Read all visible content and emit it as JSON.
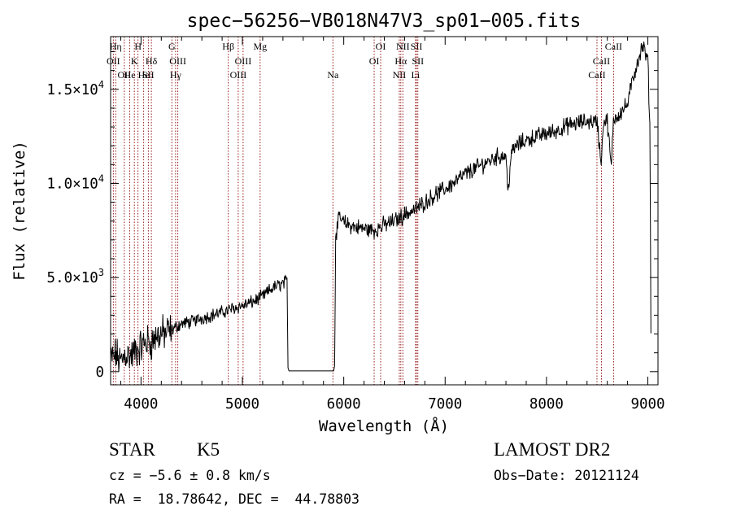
{
  "chart_data": {
    "type": "line",
    "title": "spec−56256−VB018N47V3_sp01−005.fits",
    "xlabel": "Wavelength (Å)",
    "ylabel": "Flux (relative)",
    "xlim": [
      3700,
      9100
    ],
    "ylim": [
      -700,
      17800
    ],
    "x_ticks": [
      4000,
      5000,
      6000,
      7000,
      8000,
      9000
    ],
    "x_tick_labels": [
      "4000",
      "5000",
      "6000",
      "7000",
      "8000",
      "9000"
    ],
    "y_ticks": [
      0,
      5000,
      10000,
      15000
    ],
    "y_tick_labels": [
      {
        "mant": "0",
        "exp": ""
      },
      {
        "mant": "5.0×10",
        "exp": "3"
      },
      {
        "mant": "1.0×10",
        "exp": "4"
      },
      {
        "mant": "1.5×10",
        "exp": "4"
      }
    ],
    "grid": false,
    "series": [
      {
        "color": "#000000",
        "anchors": [
          [
            3700,
            600
          ],
          [
            3750,
            900
          ],
          [
            3800,
            500
          ],
          [
            3850,
            1000
          ],
          [
            3900,
            800
          ],
          [
            3950,
            1100
          ],
          [
            4000,
            1300
          ],
          [
            4050,
            1600
          ],
          [
            4100,
            1550
          ],
          [
            4150,
            1850
          ],
          [
            4200,
            2000
          ],
          [
            4250,
            2050
          ],
          [
            4300,
            2200
          ],
          [
            4350,
            2400
          ],
          [
            4400,
            2550
          ],
          [
            4500,
            2650
          ],
          [
            4600,
            2850
          ],
          [
            4700,
            3000
          ],
          [
            4800,
            3150
          ],
          [
            4900,
            3350
          ],
          [
            5000,
            3500
          ],
          [
            5100,
            3700
          ],
          [
            5200,
            4000
          ],
          [
            5300,
            4450
          ],
          [
            5400,
            4700
          ],
          [
            5440,
            4800
          ],
          [
            5450,
            200
          ],
          [
            5460,
            40
          ],
          [
            5900,
            40
          ],
          [
            5910,
            300
          ],
          [
            5920,
            7300
          ],
          [
            5960,
            8200
          ],
          [
            6000,
            7900
          ],
          [
            6100,
            7700
          ],
          [
            6200,
            7600
          ],
          [
            6300,
            7500
          ],
          [
            6400,
            7800
          ],
          [
            6500,
            8000
          ],
          [
            6600,
            8350
          ],
          [
            6700,
            8600
          ],
          [
            6800,
            9000
          ],
          [
            6900,
            9400
          ],
          [
            7000,
            9700
          ],
          [
            7100,
            10100
          ],
          [
            7200,
            10500
          ],
          [
            7300,
            10800
          ],
          [
            7400,
            11100
          ],
          [
            7500,
            11400
          ],
          [
            7600,
            11500
          ],
          [
            7620,
            9500
          ],
          [
            7650,
            11500
          ],
          [
            7700,
            12000
          ],
          [
            7800,
            12300
          ],
          [
            7900,
            12500
          ],
          [
            8000,
            12650
          ],
          [
            8100,
            12800
          ],
          [
            8200,
            13050
          ],
          [
            8300,
            13200
          ],
          [
            8400,
            13300
          ],
          [
            8500,
            13300
          ],
          [
            8540,
            11000
          ],
          [
            8560,
            13300
          ],
          [
            8600,
            13300
          ],
          [
            8640,
            10800
          ],
          [
            8660,
            13400
          ],
          [
            8700,
            13600
          ],
          [
            8800,
            14200
          ],
          [
            8850,
            15500
          ],
          [
            8900,
            16500
          ],
          [
            8950,
            17300
          ],
          [
            9000,
            16500
          ],
          [
            9020,
            13000
          ],
          [
            9030,
            2400
          ]
        ],
        "sampling_step_A": 5
      }
    ],
    "lines_label_color": "#000000",
    "line_color": "#8b0000",
    "spectral_lines": [
      {
        "w": 3727,
        "label": "OII",
        "row": 2
      },
      {
        "w": 3750,
        "label": "Hη",
        "row": 1
      },
      {
        "w": 3835,
        "label": "OII",
        "row": 3
      },
      {
        "w": 3889,
        "label": "He",
        "row": 3
      },
      {
        "w": 3934,
        "label": "K",
        "row": 2
      },
      {
        "w": 3970,
        "label": "H",
        "row": 1
      },
      {
        "w": 4026,
        "label": "He",
        "row": 3
      },
      {
        "w": 4072,
        "label": "SII",
        "row": 3
      },
      {
        "w": 4102,
        "label": "Hδ",
        "row": 2
      },
      {
        "w": 4304,
        "label": "G",
        "row": 1
      },
      {
        "w": 4341,
        "label": "Hγ",
        "row": 3
      },
      {
        "w": 4363,
        "label": "OIII",
        "row": 2
      },
      {
        "w": 4861,
        "label": "Hβ",
        "row": 1
      },
      {
        "w": 4959,
        "label": "OIII",
        "row": 3
      },
      {
        "w": 5007,
        "label": "OIII",
        "row": 2
      },
      {
        "w": 5175,
        "label": "Mg",
        "row": 1
      },
      {
        "w": 5893,
        "label": "Na",
        "row": 3
      },
      {
        "w": 6300,
        "label": "OI",
        "row": 2
      },
      {
        "w": 6364,
        "label": "OI",
        "row": 1
      },
      {
        "w": 6548,
        "label": "NII",
        "row": 3
      },
      {
        "w": 6563,
        "label": "Hα",
        "row": 2
      },
      {
        "w": 6583,
        "label": "NII",
        "row": 1
      },
      {
        "w": 6708,
        "label": "Li",
        "row": 3
      },
      {
        "w": 6717,
        "label": "SII",
        "row": 1
      },
      {
        "w": 6731,
        "label": "SII",
        "row": 2
      },
      {
        "w": 8498,
        "label": "CaII",
        "row": 3
      },
      {
        "w": 8542,
        "label": "CaII",
        "row": 2
      },
      {
        "w": 8662,
        "label": "CaII",
        "row": 1
      }
    ]
  },
  "info": {
    "class": "STAR",
    "subclass": "K5",
    "survey": "LAMOST DR2",
    "cz": "cz = −5.6 ± 0.8 km/s",
    "obs_date": "Obs−Date: 20121124",
    "coords": "RA =  18.78642, DEC =  44.78803"
  }
}
